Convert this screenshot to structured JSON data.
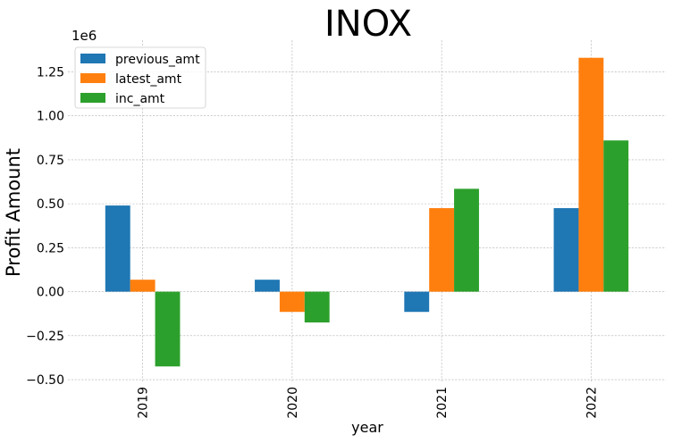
{
  "chart_data": {
    "type": "bar",
    "title": "INOX",
    "xlabel": "year",
    "ylabel": "Profit Amount",
    "y_offset_label": "1e6",
    "categories": [
      "2019",
      "2020",
      "2021",
      "2022"
    ],
    "series": [
      {
        "name": "previous_amt",
        "color": "#1f77b4",
        "values": [
          490000,
          68000,
          -115000,
          475000
        ]
      },
      {
        "name": "latest_amt",
        "color": "#ff7f0e",
        "values": [
          68000,
          -115000,
          475000,
          1330000
        ]
      },
      {
        "name": "inc_amt",
        "color": "#2ca02c",
        "values": [
          -425000,
          -175000,
          585000,
          860000
        ]
      }
    ],
    "ylim": [
      -0.51,
      1.43
    ],
    "ytick_values": [
      -0.5,
      -0.25,
      0.0,
      0.25,
      0.5,
      0.75,
      1.0,
      1.25
    ],
    "ytick_labels": [
      "−0.50",
      "−0.25",
      "0.00",
      "0.25",
      "0.50",
      "0.75",
      "1.00",
      "1.25"
    ],
    "grid": true,
    "legend_position": "top-left"
  }
}
